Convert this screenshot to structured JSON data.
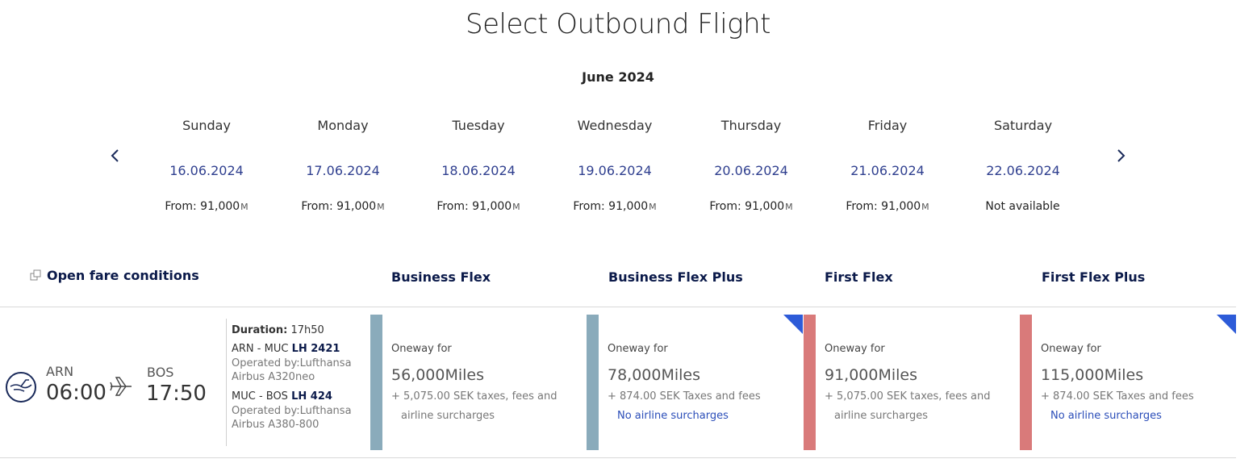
{
  "title": "Select Outbound Flight",
  "month": "June 2024",
  "days": [
    {
      "name": "Sunday",
      "date": "16.06.2024",
      "price": "From: 91,000",
      "miles_symbol": "M"
    },
    {
      "name": "Monday",
      "date": "17.06.2024",
      "price": "From: 91,000",
      "miles_symbol": "M"
    },
    {
      "name": "Tuesday",
      "date": "18.06.2024",
      "price": "From: 91,000",
      "miles_symbol": "M"
    },
    {
      "name": "Wednesday",
      "date": "19.06.2024",
      "price": "From: 91,000",
      "miles_symbol": "M"
    },
    {
      "name": "Thursday",
      "date": "20.06.2024",
      "price": "From: 91,000",
      "miles_symbol": "M"
    },
    {
      "name": "Friday",
      "date": "21.06.2024",
      "price": "From: 91,000",
      "miles_symbol": "M"
    },
    {
      "name": "Saturday",
      "date": "22.06.2024",
      "price": "Not available",
      "miles_symbol": ""
    }
  ],
  "nav": {
    "prev_icon": "chevron-left-icon",
    "next_icon": "chevron-right-icon"
  },
  "open_fare_conditions": "Open fare conditions",
  "fare_headers": [
    "Business Flex",
    "Business Flex Plus",
    "First Flex",
    "First Flex Plus"
  ],
  "flight": {
    "origin_code": "ARN",
    "origin_time": "06:00",
    "dest_code": "BOS",
    "dest_time": "17:50",
    "duration_label": "Duration:",
    "duration_value": "17h50",
    "legs": [
      {
        "route": "ARN - MUC",
        "flight_no": "LH 2421",
        "operated": "Operated by:Lufthansa",
        "aircraft": "Airbus A320neo"
      },
      {
        "route": "MUC - BOS",
        "flight_no": "LH 424",
        "operated": "Operated by:Lufthansa",
        "aircraft": "Airbus A380-800"
      }
    ]
  },
  "fares": [
    {
      "label": "Oneway for",
      "miles": "56,000Miles",
      "tax": "+ 5,075.00 SEK taxes, fees and",
      "surcharge": "airline surcharges",
      "bar_color": "#8aabbb",
      "corner": false
    },
    {
      "label": "Oneway for",
      "miles": "78,000Miles",
      "tax": "+ 874.00 SEK Taxes and fees",
      "surcharge": "No airline surcharges",
      "bar_color": "#8aabbb",
      "corner": true
    },
    {
      "label": "Oneway for",
      "miles": "91,000Miles",
      "tax": "+ 5,075.00 SEK taxes, fees and",
      "surcharge": "airline surcharges",
      "bar_color": "#d97a7a",
      "corner": false
    },
    {
      "label": "Oneway for",
      "miles": "115,000Miles",
      "tax": "+ 874.00 SEK Taxes and fees",
      "surcharge": "No airline surcharges",
      "bar_color": "#d97a7a",
      "corner": true
    }
  ],
  "colors": {
    "accent_blue": "#2f3f8f",
    "link_blue": "#2a4db8",
    "corner_blue": "#2d5bd8"
  }
}
